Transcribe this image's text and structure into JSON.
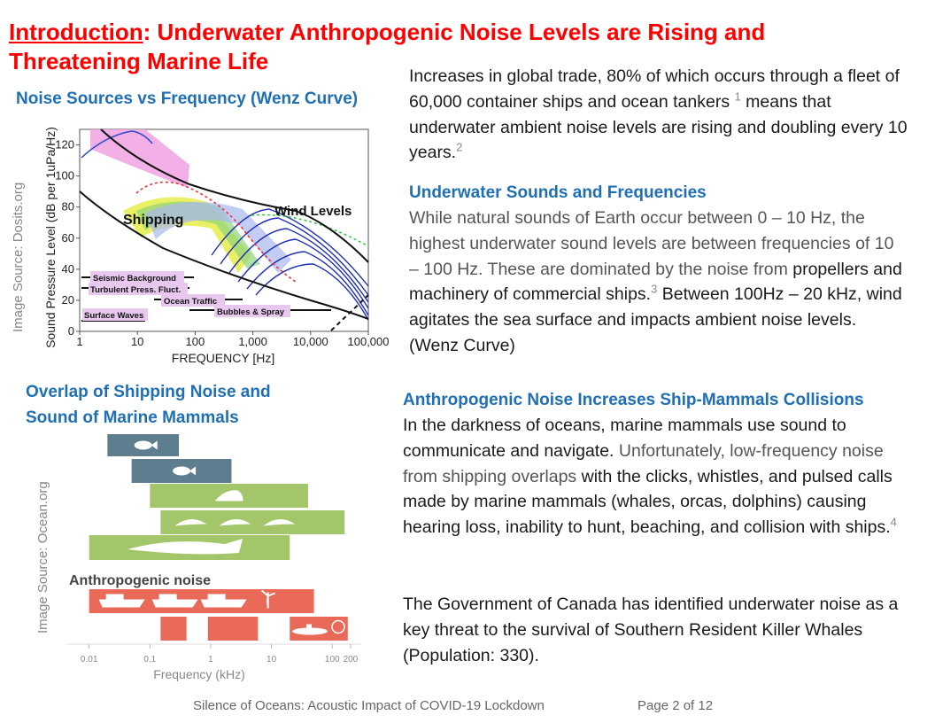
{
  "title": {
    "underlined": "Introduction",
    "rest": ": Underwater Anthropogenic Noise Levels are Rising and Threatening Marine Life"
  },
  "wenz": {
    "heading": "Noise Sources vs Frequency (Wenz Curve)",
    "source": "Image Source: Dosits.org",
    "ylabel": "Sound Pressure Level (dB per 1uPa/Hz)",
    "xlabel": "FREQUENCY [Hz]",
    "labels": {
      "shipping": "Shipping",
      "wind": "Wind Levels",
      "seismic": "Seismic Background",
      "turbulent": "Turbulent Press. Fluct.",
      "traffic": "Ocean Traffic",
      "bubbles": "Bubbles & Spray",
      "surface": "Surface Waves"
    }
  },
  "overlap": {
    "heading_line1": "Overlap of Shipping Noise and",
    "heading_line2": "Sound of Marine Mammals",
    "source": "Image Source: Ocean.org",
    "anthro_label": "Anthropogenic noise",
    "xlabel": "Frequency (kHz)"
  },
  "right": {
    "p1": {
      "a": "Increases in global trade, 80% of which occurs through a fleet of 60,000 container ships and ocean tankers ",
      "fn1": "1",
      "b": " means that underwater ambient noise levels are rising and doubling every 10 years.",
      "fn2": "2"
    },
    "h2": "Underwater Sounds and Frequencies",
    "p2": {
      "a": "While natural sounds of Earth occur between 0 – 10 Hz, the highest underwater sound levels are between frequencies of 10 – 100 Hz. These are dominated by the",
      "b": "noise from ",
      "c": "propellers and machinery of commercial ships.",
      "fn": "3",
      "d": " Between 100Hz – 20 kHz, wind agitates the sea surface and impacts ambient noise levels. (Wenz Curve)"
    },
    "h3": "Anthropogenic Noise Increases Ship-Mammals Collisions",
    "p3": {
      "a": "In the darkness of oceans, marine mammals use sound to communicate and navigate. ",
      "b": "Unfortunately, low-frequency noise from shipping overlaps",
      "c": " with the clicks, whistles, and pulsed calls made by marine mammals (whales, orcas, dolphins) causing hearing loss, inability to hunt, beaching, and collision with ships.",
      "fn": "4"
    },
    "p4": "The Government of Canada has identified underwater noise as a key threat to the survival of Southern Resident Killer Whales (Population: 330)."
  },
  "footer": {
    "left": "Silence of Oceans: Acoustic Impact of COVID-19 Lockdown",
    "right": "Page 2 of 12"
  },
  "chart_data": [
    {
      "type": "line",
      "xscale": "log",
      "xlabel": "FREQUENCY [Hz]",
      "ylabel": "Sound Pressure Level (dB per 1uPa/Hz)",
      "xticks": [
        "1",
        "10",
        "100",
        "1,000",
        "10,000",
        "100,000"
      ],
      "yticks": [
        0,
        20,
        40,
        60,
        80,
        100,
        120
      ],
      "xlim": [
        1,
        100000
      ],
      "ylim": [
        0,
        130
      ]
    },
    {
      "type": "bar",
      "xscale": "log",
      "xlabel": "Frequency (kHz)",
      "xticks": [
        "0.01",
        "0.1",
        "1",
        "10",
        "100",
        "200"
      ],
      "bars": [
        {
          "from": 0.02,
          "to": 0.3,
          "color": "#5e7d8e",
          "icon": "fish-icon"
        },
        {
          "from": 0.05,
          "to": 2.2,
          "color": "#5e7d8e",
          "icon": "fish-icon"
        },
        {
          "from": 0.1,
          "to": 40,
          "color": "#a3c66a",
          "icon": "seal-icon"
        },
        {
          "from": 0.15,
          "to": 160,
          "color": "#a3c66a",
          "icon": "dolphin-icon"
        },
        {
          "from": 0.01,
          "to": 20,
          "color": "#a3c66a",
          "icon": "whale-icon"
        },
        {
          "from": 0.01,
          "to": 50,
          "color": "#e96a58",
          "icon": "ship-icon",
          "group": "anthropogenic"
        },
        {
          "from": 0.15,
          "to": 0.4,
          "color": "#e96a58",
          "icon": "",
          "group": "anthropogenic"
        },
        {
          "from": 0.9,
          "to": 6,
          "color": "#e96a58",
          "icon": "",
          "group": "anthropogenic"
        },
        {
          "from": 20,
          "to": 180,
          "color": "#e96a58",
          "icon": "submarine-icon",
          "group": "anthropogenic"
        }
      ]
    }
  ]
}
